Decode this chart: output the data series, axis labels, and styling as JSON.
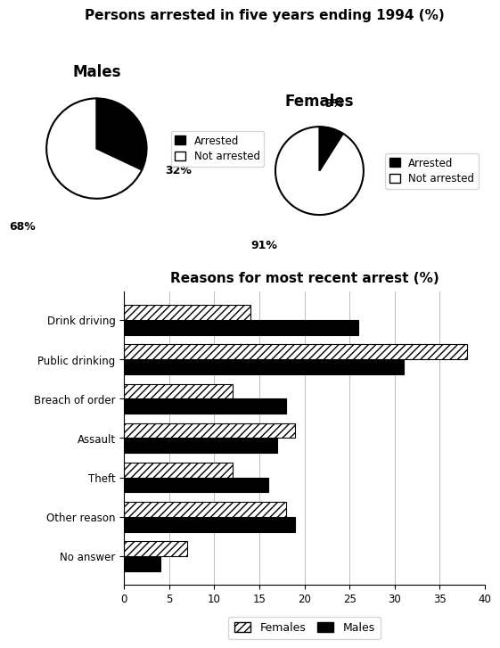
{
  "title_top": "Persons arrested in five years ending 1994 (%)",
  "pie_title_left": "Males",
  "pie_title_right": "Females",
  "male_pie": [
    32,
    68
  ],
  "female_pie": [
    9,
    91
  ],
  "pie_labels_male_arrested": "32%",
  "pie_labels_male_not": "68%",
  "pie_labels_female_arrested": "9%",
  "pie_labels_female_not": "91%",
  "pie_colors_arrested": "#000000",
  "pie_colors_not_arrested": "#ffffff",
  "bar_title": "Reasons for most recent arrest (%)",
  "categories": [
    "Drink driving",
    "Public drinking",
    "Breach of order",
    "Assault",
    "Theft",
    "Other reason",
    "No answer"
  ],
  "males_data": [
    26,
    31,
    18,
    17,
    16,
    19,
    4
  ],
  "females_data": [
    14,
    38,
    12,
    19,
    12,
    18,
    7
  ],
  "xlim": [
    0,
    40
  ],
  "xticks": [
    0,
    5,
    10,
    15,
    20,
    25,
    30,
    35,
    40
  ],
  "legend_females": "Females",
  "legend_males": "Males",
  "bar_color_males": "#000000",
  "bar_color_females": "#ffffff",
  "bar_hatch_males": "....",
  "bar_hatch_females": "////",
  "background_color": "#ffffff"
}
